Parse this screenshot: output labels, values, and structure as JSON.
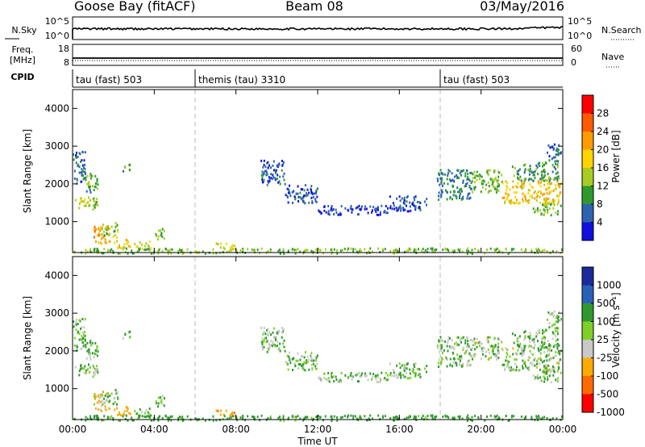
{
  "header": {
    "station": "Goose Bay (fitACF)",
    "beam": "Beam 08",
    "date": "03/May/2016"
  },
  "noise_panel": {
    "left_label": "N.Sky",
    "right_label": "N.Search",
    "left_ticks": [
      "10^5",
      "10^0"
    ],
    "right_ticks": [
      "10^5",
      "10^0"
    ]
  },
  "freq_panel": {
    "left_label_1": "Freq.",
    "left_label_2": "[MHz]",
    "right_label": "Nave",
    "left_ticks": [
      "18",
      "8"
    ],
    "right_ticks": [
      "60",
      "0"
    ]
  },
  "cpid": {
    "label": "CPID",
    "segments": [
      {
        "name": "tau (fast) 503",
        "start_hour": 0
      },
      {
        "name": "themis (tau) 3310",
        "start_hour": 6
      },
      {
        "name": "tau (fast) 503",
        "start_hour": 18
      }
    ]
  },
  "power_colorbar": {
    "title": "Power [dB]",
    "ticks": [
      "28",
      "24",
      "20",
      "16",
      "12",
      "8",
      "4"
    ],
    "colors": [
      "#ff0000",
      "#ff5a00",
      "#ff9a00",
      "#ffd400",
      "#aacc22",
      "#2e9a2e",
      "#2b63b0",
      "#1010e0"
    ]
  },
  "velocity_colorbar": {
    "title": "Velocity [m s⁻¹]",
    "ticks": [
      "1000",
      "500",
      "100",
      "25",
      "-25",
      "-100",
      "-500",
      "-1000"
    ],
    "colors": [
      "#1a2a9a",
      "#2a60b8",
      "#2e9a2e",
      "#7fcf2a",
      "#c8c8c8",
      "#ffaa00",
      "#ff6a00",
      "#ff0000"
    ]
  },
  "chart_data": {
    "type": "heatmap",
    "xlabel": "Time UT",
    "ylabel": "Slant Range [km]",
    "xlim_hours": [
      0,
      24
    ],
    "ylim_km": [
      180,
      4500
    ],
    "xticks": [
      "00:00",
      "04:00",
      "08:00",
      "12:00",
      "16:00",
      "20:00",
      "00:00"
    ],
    "yticks": [
      1000,
      2000,
      3000,
      4000
    ],
    "cpid_boundaries_hours": [
      6,
      18
    ],
    "echo_regions": [
      {
        "t0": 0.1,
        "t1": 1.2,
        "r0": 1350,
        "r1": 1700,
        "power_db": 14,
        "velocity": 20
      },
      {
        "t0": 0.6,
        "t1": 1.3,
        "r0": 1800,
        "r1": 2300,
        "power_db": 10,
        "velocity": 20
      },
      {
        "t0": 0.0,
        "t1": 0.6,
        "r0": 2000,
        "r1": 2900,
        "power_db": 6,
        "velocity": 20
      },
      {
        "t0": 1.0,
        "t1": 1.8,
        "r0": 400,
        "r1": 900,
        "power_db": 22,
        "velocity": -20
      },
      {
        "t0": 1.4,
        "t1": 2.2,
        "r0": 600,
        "r1": 1000,
        "power_db": 14,
        "velocity": 20
      },
      {
        "t0": 2.0,
        "t1": 2.8,
        "r0": 300,
        "r1": 550,
        "power_db": 18,
        "velocity": -60
      },
      {
        "t0": 3.0,
        "t1": 3.8,
        "r0": 300,
        "r1": 500,
        "power_db": 14,
        "velocity": 20
      },
      {
        "t0": 4.0,
        "t1": 4.5,
        "r0": 550,
        "r1": 850,
        "power_db": 12,
        "velocity": 20
      },
      {
        "t0": 2.4,
        "t1": 2.8,
        "r0": 2350,
        "r1": 2550,
        "power_db": 10,
        "velocity": 20
      },
      {
        "t0": 7.0,
        "t1": 8.0,
        "r0": 280,
        "r1": 450,
        "power_db": 16,
        "velocity": -80
      },
      {
        "t0": 9.2,
        "t1": 10.4,
        "r0": 2000,
        "r1": 2650,
        "power_db": 6,
        "velocity": 20
      },
      {
        "t0": 10.4,
        "t1": 12.0,
        "r0": 1500,
        "r1": 2000,
        "power_db": 5,
        "velocity": 20
      },
      {
        "t0": 12.0,
        "t1": 15.5,
        "r0": 1200,
        "r1": 1450,
        "power_db": 4,
        "velocity": 20
      },
      {
        "t0": 15.5,
        "t1": 17.3,
        "r0": 1300,
        "r1": 1700,
        "power_db": 5,
        "velocity": 20
      },
      {
        "t0": 17.8,
        "t1": 19.5,
        "r0": 1600,
        "r1": 2400,
        "power_db": 8,
        "velocity": 20
      },
      {
        "t0": 19.5,
        "t1": 21.0,
        "r0": 1800,
        "r1": 2400,
        "power_db": 12,
        "velocity": 10
      },
      {
        "t0": 21.0,
        "t1": 23.9,
        "r0": 1500,
        "r1": 2100,
        "power_db": 18,
        "velocity": 10
      },
      {
        "t0": 21.5,
        "t1": 23.8,
        "r0": 2100,
        "r1": 2600,
        "power_db": 10,
        "velocity": 20
      },
      {
        "t0": 22.5,
        "t1": 23.9,
        "r0": 1200,
        "r1": 1500,
        "power_db": 12,
        "velocity": 20
      },
      {
        "t0": 23.2,
        "t1": 23.9,
        "r0": 2600,
        "r1": 3100,
        "power_db": 6,
        "velocity": 20
      },
      {
        "t0": 0.0,
        "t1": 24.0,
        "r0": 180,
        "r1": 320,
        "power_db": 12,
        "velocity": 60
      }
    ]
  }
}
